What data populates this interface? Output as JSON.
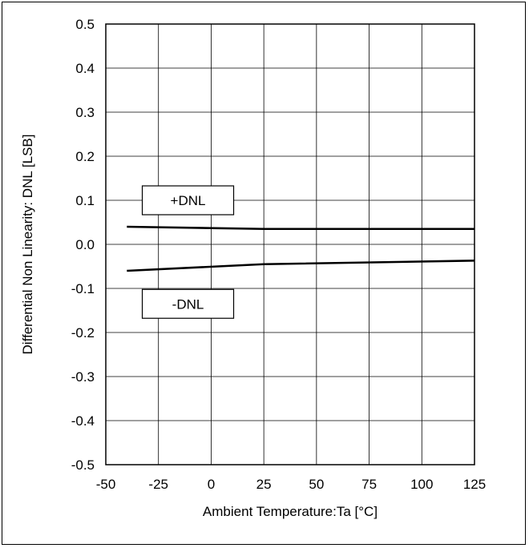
{
  "chart_data": {
    "type": "line",
    "title": "",
    "xlabel": "Ambient Temperature:Ta [°C]",
    "ylabel": "Differential Non Linearity: DNL [LSB]",
    "xlim": [
      -50,
      125
    ],
    "ylim": [
      -0.5,
      0.5
    ],
    "x_ticks": [
      -50,
      -25,
      0,
      25,
      50,
      75,
      100,
      125
    ],
    "y_ticks": [
      0.5,
      0.4,
      0.3,
      0.2,
      0.1,
      0.0,
      -0.1,
      -0.2,
      -0.3,
      -0.4,
      -0.5
    ],
    "x_tick_labels": [
      "-50",
      "-25",
      "0",
      "25",
      "50",
      "75",
      "100",
      "125"
    ],
    "y_tick_labels": [
      "0.5",
      "0.4",
      "0.3",
      "0.2",
      "0.1",
      "0.0",
      "-0.1",
      "-0.2",
      "-0.3",
      "-0.4",
      "-0.5"
    ],
    "grid": true,
    "series": [
      {
        "name": "+DNL",
        "x": [
          -40,
          25,
          125
        ],
        "y": [
          0.04,
          0.035,
          0.035
        ]
      },
      {
        "name": "-DNL",
        "x": [
          -40,
          25,
          125
        ],
        "y": [
          -0.06,
          -0.045,
          -0.037
        ]
      }
    ],
    "annotations": [
      {
        "text": "+DNL",
        "x": -11,
        "y": 0.1
      },
      {
        "text": "-DNL",
        "x": -11,
        "y": -0.135
      }
    ],
    "colors": {
      "line": "#000000",
      "grid": "#000000"
    }
  }
}
